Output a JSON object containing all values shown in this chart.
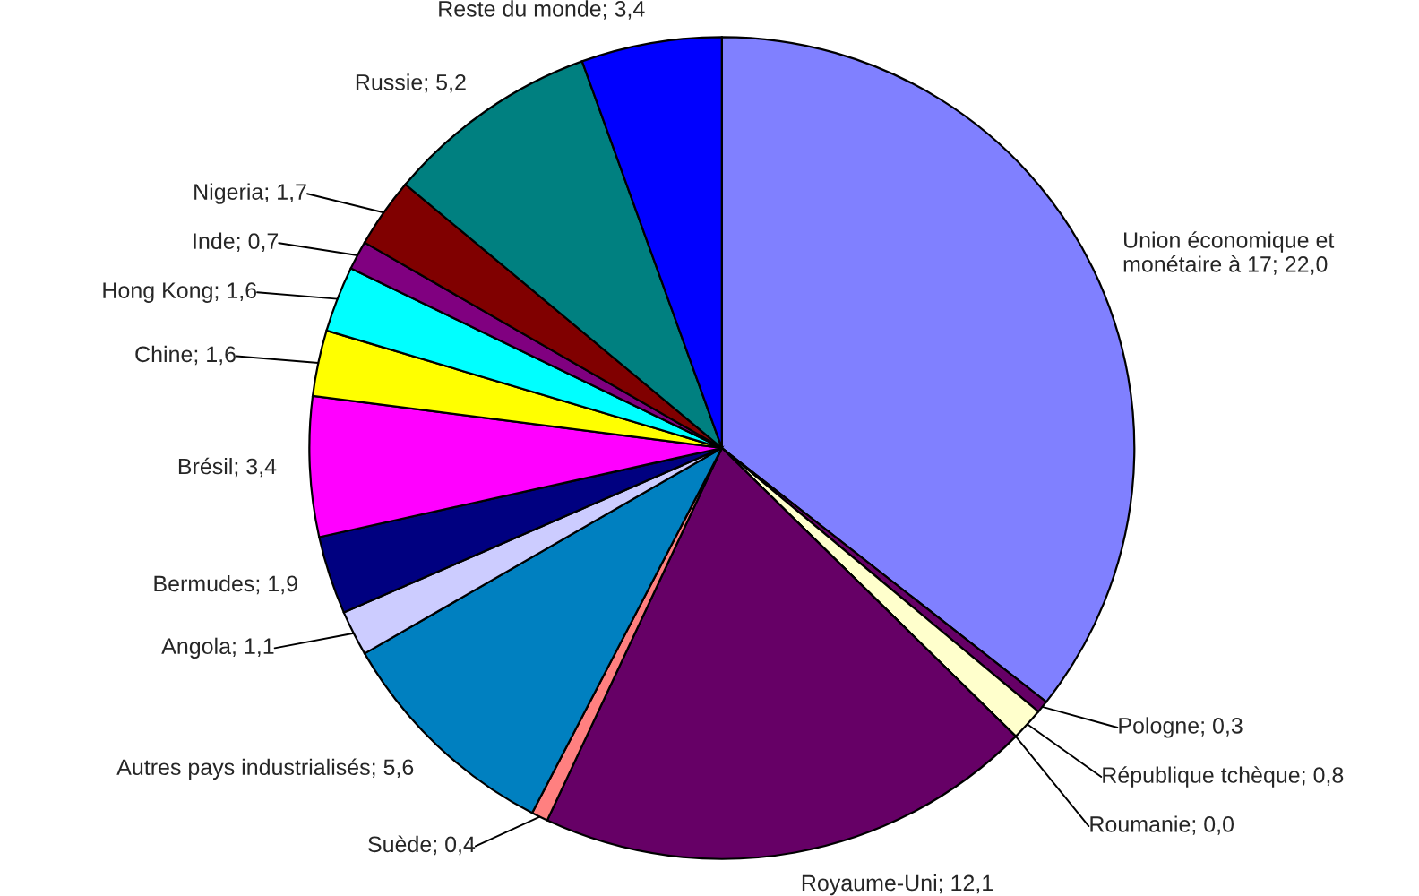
{
  "chart_data": {
    "type": "pie",
    "categories": [
      "Union économique et monétaire à 17; 22,0",
      "Pologne; 0,3",
      "République tchèque; 0,8",
      "Roumanie; 0,0",
      "Royaume-Uni; 12,1",
      "Suède; 0,4",
      "Autres pays industrialisés; 5,6",
      "Angola; 1,1",
      "Bermudes; 1,9",
      "Brésil; 3,4",
      "Chine; 1,6",
      "Hong Kong; 1,6",
      "Inde; 0,7",
      "Nigeria; 1,7",
      "Russie; 5,2",
      "Reste du monde; 3,4"
    ],
    "values": [
      22.0,
      0.3,
      0.8,
      0.0,
      12.1,
      0.4,
      5.6,
      1.1,
      1.9,
      3.4,
      1.6,
      1.6,
      0.7,
      1.7,
      5.2,
      3.4
    ],
    "colors": [
      "#8080ff",
      "#660066",
      "#ffffcc",
      "#00ccff",
      "#660066",
      "#ff8080",
      "#0080c0",
      "#ccccff",
      "#000080",
      "#ff00ff",
      "#ffff00",
      "#00ffff",
      "#800080",
      "#800000",
      "#008080",
      "#0000ff"
    ]
  }
}
